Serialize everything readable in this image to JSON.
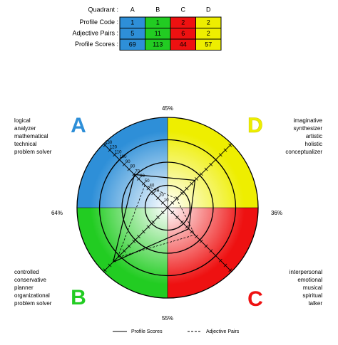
{
  "table": {
    "header": [
      "Quadrant :",
      "A",
      "B",
      "C",
      "D"
    ],
    "rows": [
      [
        "Profile Code :",
        1,
        1,
        2,
        2
      ],
      [
        "Adjective Pairs :",
        5,
        11,
        6,
        2
      ],
      [
        "Profile Scores :",
        69,
        113,
        44,
        57
      ]
    ]
  },
  "chart_data": {
    "type": "radar",
    "quadrants": [
      "A",
      "B",
      "C",
      "D"
    ],
    "quadrant_colors": [
      "#2e8fd8",
      "#22cc22",
      "#ee1111",
      "#eeee00"
    ],
    "descriptors": [
      [
        "logical",
        "analyzer",
        "mathematical",
        "technical",
        "problem solver"
      ],
      [
        "controlled",
        "conservative",
        "planner",
        "organizational",
        "problem solver"
      ],
      [
        "interpersonal",
        "emotional",
        "musical",
        "spiritual",
        "talker"
      ],
      [
        "imaginative",
        "synthesizer",
        "artistic",
        "holistic",
        "conceptualizer"
      ]
    ],
    "hemispheres": [
      {
        "value": 45,
        "label": "45%"
      },
      {
        "value": 36,
        "label": "36%"
      },
      {
        "value": 55,
        "label": "55%"
      },
      {
        "value": 64,
        "label": "64%"
      }
    ],
    "rlim": [
      0,
      133
    ],
    "circles": [
      33,
      67,
      100,
      133
    ],
    "rticks": [
      10,
      20,
      30,
      40,
      50,
      60,
      70,
      80,
      90,
      100,
      110,
      120,
      130
    ],
    "series": [
      {
        "name": "Profile Scores",
        "values": [
          69,
          113,
          44,
          57
        ],
        "style": "solid"
      },
      {
        "name": "Adjective Pairs",
        "values": [
          5,
          11,
          6,
          2
        ],
        "style": "dashed"
      }
    ]
  }
}
